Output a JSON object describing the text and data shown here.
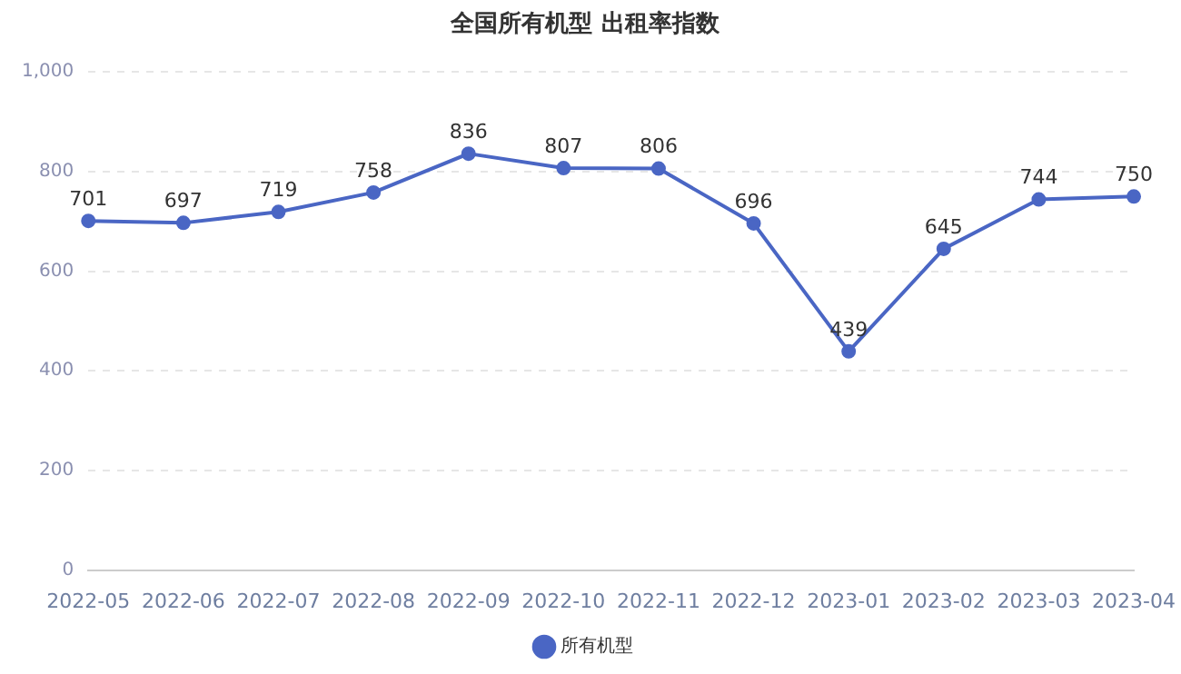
{
  "chart_data": {
    "type": "line",
    "title": "全国所有机型 出租率指数",
    "categories": [
      "2022-05",
      "2022-06",
      "2022-07",
      "2022-08",
      "2022-09",
      "2022-10",
      "2022-11",
      "2022-12",
      "2023-01",
      "2023-02",
      "2023-03",
      "2023-04"
    ],
    "series": [
      {
        "name": "所有机型",
        "color": "#4a66c4",
        "values": [
          701,
          697,
          719,
          758,
          836,
          807,
          806,
          696,
          439,
          645,
          744,
          750
        ]
      }
    ],
    "ylim": [
      0,
      1000
    ],
    "yticks": [
      0,
      200,
      400,
      600,
      800,
      {
        "value": 1000,
        "label": "1,000"
      }
    ],
    "grid": "y",
    "legend": "bottom",
    "marker": "circle",
    "line_style": "solid",
    "data_labels": true
  }
}
